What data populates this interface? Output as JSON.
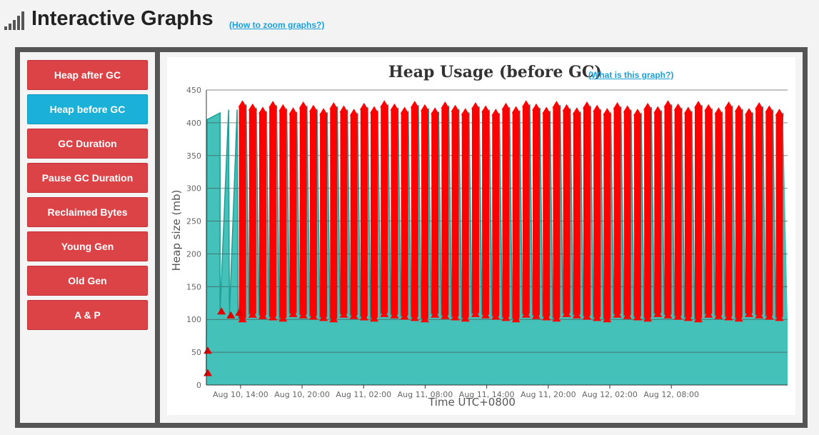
{
  "page": {
    "title": "Interactive Graphs",
    "zoom_link": "(How to zoom graphs?)"
  },
  "sidebar": {
    "items": [
      {
        "label": "Heap after GC",
        "active": false
      },
      {
        "label": "Heap before GC",
        "active": true
      },
      {
        "label": "GC Duration",
        "active": false
      },
      {
        "label": "Pause GC Duration",
        "active": false
      },
      {
        "label": "Reclaimed Bytes",
        "active": false
      },
      {
        "label": "Young Gen",
        "active": false
      },
      {
        "label": "Old Gen",
        "active": false
      },
      {
        "label": "A & P",
        "active": false
      }
    ]
  },
  "chart_link": "(What is this graph?)",
  "colors": {
    "active_button": "#1ab0d8",
    "button": "#dc4346",
    "area_fill": "#44c2b9",
    "area_line": "#1e9e95",
    "markers": "#ff0000"
  },
  "chart_data": {
    "type": "area",
    "title": "Heap Usage (before GC)",
    "xlabel": "Time UTC+0800",
    "ylabel": "Heap size (mb)",
    "ylim": [
      0,
      450
    ],
    "yticks": [
      0,
      50,
      100,
      150,
      200,
      250,
      300,
      350,
      400,
      450
    ],
    "xlim": [
      "Aug 10, 10:40",
      "Aug 12, 19:20"
    ],
    "xticks": [
      {
        "time": "Aug 10, 14:00",
        "label": "Aug 10, 14:00"
      },
      {
        "time": "Aug 10, 20:00",
        "label": "Aug 10, 20:00"
      },
      {
        "time": "Aug 11, 02:00",
        "label": "Aug 11, 02:00"
      },
      {
        "time": "Aug 11, 08:00",
        "label": "Aug 11, 08:00"
      },
      {
        "time": "Aug 11, 14:00",
        "label": "Aug 11, 14:00"
      },
      {
        "time": "Aug 11, 20:00",
        "label": "Aug 11, 20:00"
      },
      {
        "time": "Aug 12, 02:00",
        "label": "Aug 12, 02:00"
      },
      {
        "time": "Aug 12, 08:00",
        "label": "Aug 12, 08:00"
      }
    ],
    "grid": true,
    "series": [
      {
        "name": "Heap before GC",
        "baseline": 100,
        "points": [
          {
            "x": "Aug 10, 10:40",
            "y": 18
          },
          {
            "x": "Aug 10, 10:40",
            "y": 52
          },
          {
            "x": "Aug 10, 10:45",
            "y": 405
          },
          {
            "x": "Aug 10, 12:00",
            "y": 415
          },
          {
            "x": "Aug 10, 12:00",
            "y": 112
          },
          {
            "x": "Aug 10, 12:50",
            "y": 420
          },
          {
            "x": "Aug 10, 12:55",
            "y": 106
          },
          {
            "x": "Aug 10, 13:40",
            "y": 420
          },
          {
            "x": "Aug 10, 13:45",
            "y": 110
          }
        ],
        "cycles": {
          "start": "Aug 10, 13:50",
          "end": "Aug 12, 19:10",
          "count": 54,
          "min": 100,
          "max": 428
        }
      }
    ]
  }
}
